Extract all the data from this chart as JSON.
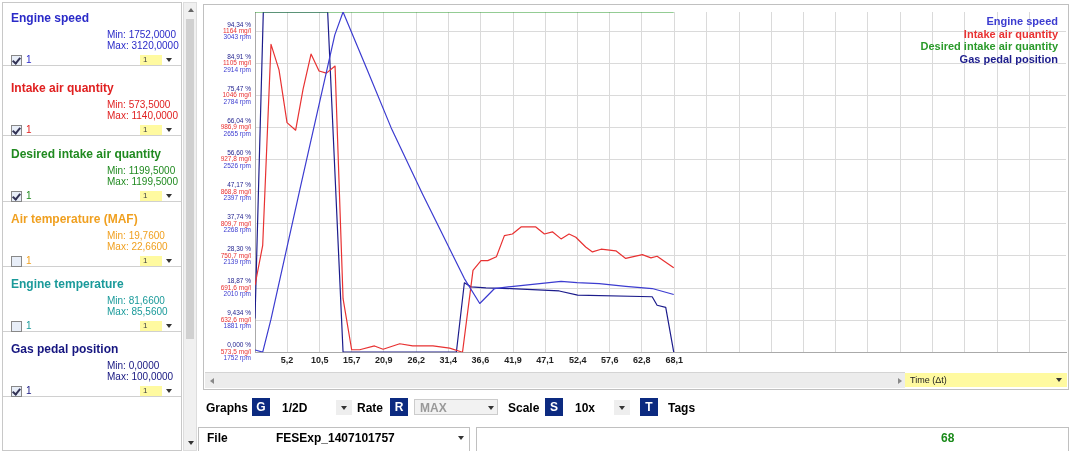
{
  "chart_data": {
    "type": "line",
    "grid": true,
    "legend": "top right",
    "xlim": [
      0,
      131.7
    ],
    "xticks": [
      {
        "value": 5.2,
        "label": "5,2"
      },
      {
        "value": 10.5,
        "label": "10,5"
      },
      {
        "value": 15.7,
        "label": "15,7"
      },
      {
        "value": 20.9,
        "label": "20,9"
      },
      {
        "value": 26.2,
        "label": "26,2"
      },
      {
        "value": 31.4,
        "label": "31,4"
      },
      {
        "value": 36.6,
        "label": "36,6"
      },
      {
        "value": 41.9,
        "label": "41,9"
      },
      {
        "value": 47.1,
        "label": "47,1"
      },
      {
        "value": 52.4,
        "label": "52,4"
      },
      {
        "value": 57.6,
        "label": "57,6"
      },
      {
        "value": 62.8,
        "label": "62,8"
      },
      {
        "value": 68.1,
        "label": "68,1"
      },
      {
        "value": 73.3,
        "label": null
      },
      {
        "value": 78.6,
        "label": null
      },
      {
        "value": 83.8,
        "label": null
      },
      {
        "value": 89.0,
        "label": null
      },
      {
        "value": 94.3,
        "label": null
      },
      {
        "value": 99.5,
        "label": null
      },
      {
        "value": 104.8,
        "label": null
      },
      {
        "value": 110.0,
        "label": null
      },
      {
        "value": 115.2,
        "label": null
      },
      {
        "value": 120.5,
        "label": null
      },
      {
        "value": 125.7,
        "label": null
      }
    ],
    "ylim": [
      0,
      100
    ],
    "yticks": [
      {
        "value": 0,
        "label": "0,000 %"
      },
      {
        "value": 9.434,
        "label": "9,434 %"
      },
      {
        "value": 18.87,
        "label": "18,87 %"
      },
      {
        "value": 28.3,
        "label": "28,30 %"
      },
      {
        "value": 37.74,
        "label": "37,74 %"
      },
      {
        "value": 47.17,
        "label": "47,17 %"
      },
      {
        "value": 56.6,
        "label": "56,60 %"
      },
      {
        "value": 66.04,
        "label": "66,04 %"
      },
      {
        "value": 75.47,
        "label": "75,47 %"
      },
      {
        "value": 84.91,
        "label": "84,91 %"
      },
      {
        "value": 94.34,
        "label": "94,34 %"
      }
    ],
    "y2lim": [
      573.5,
      1199.5
    ],
    "y2ticks": [
      {
        "value": 573.5,
        "label": "573,5 mg/l"
      },
      {
        "value": 632.6,
        "label": "632,6 mg/l"
      },
      {
        "value": 691.6,
        "label": "691,6 mg/l"
      },
      {
        "value": 750.7,
        "label": "750,7 mg/l"
      },
      {
        "value": 809.7,
        "label": "809,7 mg/l"
      },
      {
        "value": 868.8,
        "label": "868,8 mg/l"
      },
      {
        "value": 927.8,
        "label": "927,8 mg/l"
      },
      {
        "value": 986.9,
        "label": "986,9 mg/l"
      },
      {
        "value": 1046,
        "label": "1046 mg/l"
      },
      {
        "value": 1105,
        "label": "1105 mg/l"
      },
      {
        "value": 1164,
        "label": "1164 mg/l"
      }
    ],
    "y3lim": [
      1752,
      3120
    ],
    "y3ticks": [
      {
        "value": 1752,
        "label": "1752 rpm"
      },
      {
        "value": 1881,
        "label": "1881 rpm"
      },
      {
        "value": 2010,
        "label": "2010 rpm"
      },
      {
        "value": 2139,
        "label": "2139 rpm"
      },
      {
        "value": 2268,
        "label": "2268 rpm"
      },
      {
        "value": 2397,
        "label": "2397 rpm"
      },
      {
        "value": 2526,
        "label": "2526 rpm"
      },
      {
        "value": 2655,
        "label": "2655 rpm"
      },
      {
        "value": 2784,
        "label": "2784 rpm"
      },
      {
        "value": 2914,
        "label": "2914 rpm"
      },
      {
        "value": 3043,
        "label": "3043 rpm"
      }
    ],
    "series": [
      {
        "name": "Engine speed",
        "color": "#3c3cd0",
        "axis": "y3",
        "x": [
          0,
          1.25,
          2.6,
          7.3,
          12.96,
          14.3,
          18.1,
          22.1,
          27.2,
          30.0,
          34.0,
          36.5,
          38.9,
          41.6,
          49.7,
          52.3,
          55.9,
          60.2,
          64.5,
          68.0
        ],
        "values": [
          1761,
          1752,
          1885,
          2408,
          3028,
          3120,
          2895,
          2655,
          2388,
          2248,
          2048,
          1948,
          2008,
          2016,
          2037,
          2032,
          2028,
          2017,
          2008,
          1984
        ]
      },
      {
        "name": "Intake air quantity",
        "color": "#e83232",
        "axis": "y2",
        "x": [
          0,
          1.25,
          2.6,
          3.9,
          5.2,
          6.6,
          7.8,
          9.1,
          10.4,
          11.6,
          13.0,
          14.3,
          15.7,
          17.0,
          19.4,
          20.8,
          23.5,
          25.6,
          28.9,
          31.6,
          33.7,
          35.4,
          36.7,
          37.8,
          39.2,
          40.5,
          41.8,
          43.2,
          45.6,
          47.0,
          48.3,
          49.7,
          51.0,
          52.1,
          53.7,
          54.8,
          56.2,
          58.6,
          60.2,
          62.9,
          64.3,
          65.3,
          66.7,
          68.0
        ],
        "values": [
          697,
          770,
          1140,
          1093,
          996,
          982,
          1057,
          1122,
          1091,
          1087,
          1100,
          672,
          578,
          578,
          585,
          579,
          589,
          585,
          585,
          581,
          573.5,
          724,
          742,
          742,
          749,
          788,
          791,
          804,
          804,
          791,
          795,
          782,
          791,
          785,
          767,
          758,
          763,
          760,
          746,
          753,
          747,
          750,
          739,
          729
        ]
      },
      {
        "name": "Desired intake air quantity",
        "color": "#2a9a2a",
        "axis": "y2",
        "x": [
          0,
          68.0
        ],
        "values": [
          1199.5,
          1199.5
        ]
      },
      {
        "name": "Gas pedal position",
        "color": "#1c1c8c",
        "axis": "y",
        "x": [
          0,
          1.35,
          11.8,
          14.3,
          32.7,
          34.0,
          35.1,
          37.5,
          41.6,
          49.4,
          52.4,
          64.5,
          65.3,
          66.7,
          68.0
        ],
        "values": [
          9.9,
          100,
          100,
          0,
          0,
          20.4,
          19.2,
          18.9,
          18.7,
          18.0,
          16.8,
          16.3,
          13.8,
          13.2,
          0
        ]
      }
    ],
    "annotations": [
      "Engine speed",
      "Min: 1752,0000",
      "Max: 3120,0000",
      "1",
      "1",
      "Intake air quantity",
      "Min: 573,5000",
      "Max: 1140,0000",
      "1",
      "1",
      "Desired intake air quantity",
      "Min: 1199,5000",
      "Max: 1199,5000",
      "1",
      "1",
      "Air temperature (MAF)",
      "Min: 19,7600",
      "Max: 22,6600",
      "1",
      "1",
      "Engine temperature",
      "Min: 81,6600",
      "Max: 85,5600",
      "1",
      "1",
      "Gas pedal position",
      "Min: 0,0000",
      "Max: 100,0000",
      "1",
      "1",
      "Time (Δt)",
      "Graphs",
      "G",
      "1/2D",
      "Rate",
      "R",
      "MAX",
      "Scale",
      "S",
      "10x",
      "T",
      "Tags",
      "File",
      "FESExp_1407101757",
      "68"
    ]
  }
}
